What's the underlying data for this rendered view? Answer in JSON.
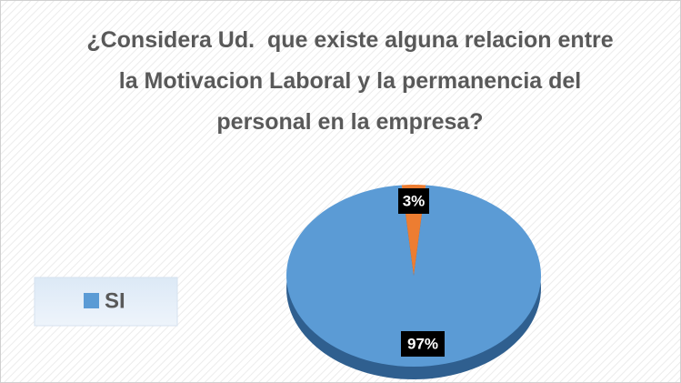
{
  "chart_data": {
    "type": "pie",
    "title": "¿Considera Ud.  que existe alguna relacion entre la Motivacion Laboral y la permanencia del personal en la empresa?",
    "categories": [
      "SI",
      null
    ],
    "values": [
      97,
      3
    ],
    "value_labels": [
      "97%",
      "3%"
    ],
    "colors": [
      "#5b9bd5",
      "#ed7d31"
    ],
    "legend": "left"
  }
}
